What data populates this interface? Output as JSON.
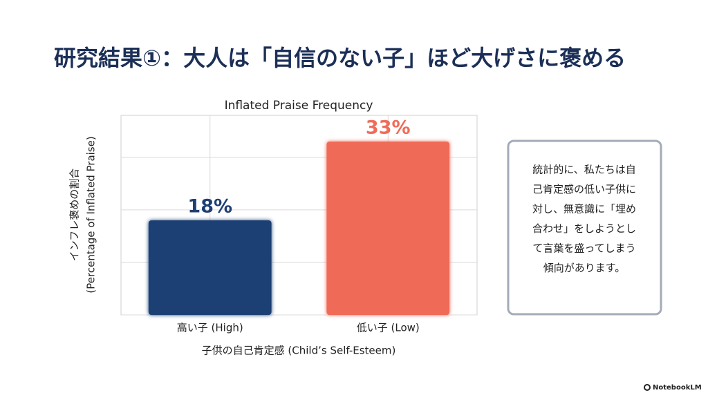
{
  "slide_title": "研究結果①：大人は「自信のない子」ほど大げさに褒める",
  "chart_data": {
    "type": "bar",
    "title": "Inflated Praise Frequency",
    "y_label": [
      "インフレ褒めの割合",
      "(Percentage of Inflated Praise)"
    ],
    "x_label": "子供の自己肯定感 (Child’s Self-Esteem)",
    "categories": [
      "高い子 (High)",
      "低い子 (Low)"
    ],
    "values": [
      18,
      33
    ],
    "value_labels": [
      "18%",
      "33%"
    ],
    "colors": [
      "#1f3f73",
      "#f06b58"
    ],
    "ylim": [
      0,
      38
    ],
    "yticks": [
      0,
      10,
      20,
      30
    ],
    "grid": true
  },
  "note": {
    "lines": [
      "統計的に、私たちは自",
      "己肯定感の低い子供に",
      "対し、無意識に「埋め",
      "合わせ」をしようとし",
      "て言葉を盛ってしまう",
      "傾向があります。"
    ]
  },
  "footer": {
    "brand": "NotebookLM"
  }
}
